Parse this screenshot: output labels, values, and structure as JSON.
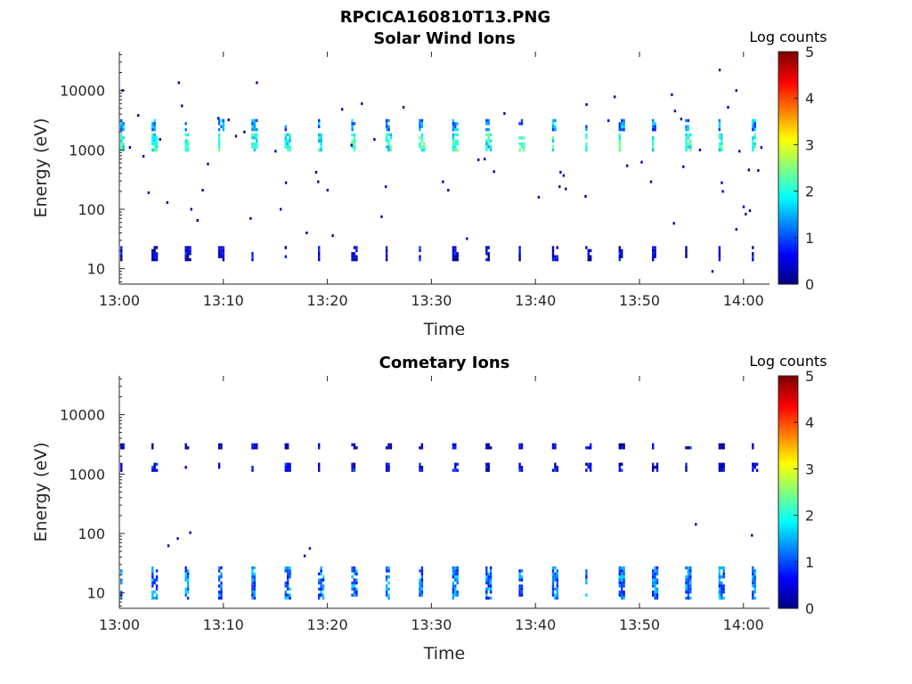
{
  "figure_title": "RPCICA160810T13.PNG",
  "chart_data": [
    {
      "type": "heatmap",
      "title": "Solar Wind Ions",
      "xlabel": "Time",
      "ylabel": "Energy (eV)",
      "x_ticks": [
        "13:00",
        "13:10",
        "13:20",
        "13:30",
        "13:40",
        "13:50",
        "14:00"
      ],
      "x_range_minutes": [
        0,
        62.5
      ],
      "y_scale": "log",
      "y_ticks": [
        10,
        100,
        1000,
        10000
      ],
      "y_tick_labels": [
        "10",
        "100",
        "1000",
        "10000"
      ],
      "y_range": [
        5.5,
        45000
      ],
      "colorbar_title": "Log counts",
      "colorbar_range": [
        0,
        5
      ],
      "colorbar_ticks": [
        "0",
        "1",
        "2",
        "3",
        "4",
        "5"
      ],
      "colormap": "jet",
      "grid": false,
      "bands": [
        {
          "energy_lo": 1050,
          "energy_hi": 1900,
          "log_counts": 2.0
        },
        {
          "energy_lo": 2300,
          "energy_hi": 3300,
          "log_counts": 1.3
        },
        {
          "energy_lo": 14,
          "energy_hi": 24,
          "log_counts": 0.4
        }
      ],
      "pulse_times_minutes": [
        0.3,
        3.3,
        6.5,
        9.7,
        12.9,
        16.1,
        19.3,
        22.5,
        25.8,
        29.0,
        32.2,
        35.4,
        38.6,
        41.8,
        45.0,
        48.2,
        51.4,
        54.6,
        57.8,
        61.0
      ],
      "sparse_points": [
        {
          "t": 0.3,
          "e": 10000
        },
        {
          "t": 1.0,
          "e": 1100
        },
        {
          "t": 1.8,
          "e": 3800
        },
        {
          "t": 2.3,
          "e": 780
        },
        {
          "t": 2.8,
          "e": 190
        },
        {
          "t": 3.9,
          "e": 1500
        },
        {
          "t": 4.6,
          "e": 130
        },
        {
          "t": 5.7,
          "e": 13500
        },
        {
          "t": 6.0,
          "e": 5500
        },
        {
          "t": 6.9,
          "e": 100
        },
        {
          "t": 7.5,
          "e": 65
        },
        {
          "t": 8.0,
          "e": 210
        },
        {
          "t": 8.5,
          "e": 580
        },
        {
          "t": 9.5,
          "e": 3400
        },
        {
          "t": 10.5,
          "e": 3200
        },
        {
          "t": 11.2,
          "e": 1700
        },
        {
          "t": 12.0,
          "e": 2000
        },
        {
          "t": 12.6,
          "e": 70
        },
        {
          "t": 13.2,
          "e": 13500
        },
        {
          "t": 15.0,
          "e": 950
        },
        {
          "t": 15.5,
          "e": 100
        },
        {
          "t": 16.0,
          "e": 280
        },
        {
          "t": 18.0,
          "e": 40
        },
        {
          "t": 18.9,
          "e": 420
        },
        {
          "t": 19.1,
          "e": 290
        },
        {
          "t": 20.0,
          "e": 210
        },
        {
          "t": 20.5,
          "e": 36
        },
        {
          "t": 21.4,
          "e": 4800
        },
        {
          "t": 22.3,
          "e": 1200
        },
        {
          "t": 23.3,
          "e": 6000
        },
        {
          "t": 24.5,
          "e": 1500
        },
        {
          "t": 25.2,
          "e": 75
        },
        {
          "t": 25.6,
          "e": 240
        },
        {
          "t": 27.3,
          "e": 5200
        },
        {
          "t": 31.1,
          "e": 290
        },
        {
          "t": 31.6,
          "e": 210
        },
        {
          "t": 33.4,
          "e": 32
        },
        {
          "t": 34.5,
          "e": 680
        },
        {
          "t": 35.1,
          "e": 700
        },
        {
          "t": 36.0,
          "e": 430
        },
        {
          "t": 37.0,
          "e": 4100
        },
        {
          "t": 40.3,
          "e": 160
        },
        {
          "t": 42.4,
          "e": 420
        },
        {
          "t": 42.7,
          "e": 370
        },
        {
          "t": 42.3,
          "e": 240
        },
        {
          "t": 42.9,
          "e": 220
        },
        {
          "t": 44.8,
          "e": 165
        },
        {
          "t": 44.9,
          "e": 5800
        },
        {
          "t": 47.6,
          "e": 7800
        },
        {
          "t": 48.8,
          "e": 540
        },
        {
          "t": 50.2,
          "e": 620
        },
        {
          "t": 51.1,
          "e": 290
        },
        {
          "t": 53.1,
          "e": 8500
        },
        {
          "t": 53.4,
          "e": 4500
        },
        {
          "t": 53.3,
          "e": 58
        },
        {
          "t": 54.2,
          "e": 520
        },
        {
          "t": 55.8,
          "e": 1000
        },
        {
          "t": 57.7,
          "e": 22000
        },
        {
          "t": 57.9,
          "e": 280
        },
        {
          "t": 58.0,
          "e": 200
        },
        {
          "t": 58.5,
          "e": 5200
        },
        {
          "t": 59.3,
          "e": 10000
        },
        {
          "t": 59.3,
          "e": 46
        },
        {
          "t": 59.6,
          "e": 950
        },
        {
          "t": 60.5,
          "e": 460
        },
        {
          "t": 60.2,
          "e": 83
        },
        {
          "t": 60.0,
          "e": 110
        },
        {
          "t": 61.4,
          "e": 450
        },
        {
          "t": 61.7,
          "e": 1100
        },
        {
          "t": 60.6,
          "e": 95
        },
        {
          "t": 54.0,
          "e": 3300
        },
        {
          "t": 57.0,
          "e": 9
        },
        {
          "t": 47.0,
          "e": 3100
        }
      ]
    },
    {
      "type": "heatmap",
      "title": "Cometary Ions",
      "xlabel": "Time",
      "ylabel": "Energy (eV)",
      "x_ticks": [
        "13:00",
        "13:10",
        "13:20",
        "13:30",
        "13:40",
        "13:50",
        "14:00"
      ],
      "x_range_minutes": [
        0,
        62.5
      ],
      "y_scale": "log",
      "y_ticks": [
        10,
        100,
        1000,
        10000
      ],
      "y_tick_labels": [
        "10",
        "100",
        "1000",
        "10000"
      ],
      "y_range": [
        5.5,
        45000
      ],
      "colorbar_title": "Log counts",
      "colorbar_range": [
        0,
        5
      ],
      "colorbar_ticks": [
        "0",
        "1",
        "2",
        "3",
        "4",
        "5"
      ],
      "colormap": "jet",
      "grid": false,
      "bands": [
        {
          "energy_lo": 2700,
          "energy_hi": 3300,
          "log_counts": 0.3
        },
        {
          "energy_lo": 1200,
          "energy_hi": 1550,
          "log_counts": 0.5
        },
        {
          "energy_lo": 8,
          "energy_hi": 28,
          "log_counts": 1.2
        }
      ],
      "pulse_times_minutes": [
        0.3,
        3.3,
        6.5,
        9.7,
        12.9,
        16.1,
        19.3,
        22.5,
        25.8,
        29.0,
        32.2,
        35.4,
        38.6,
        41.8,
        45.0,
        48.2,
        51.4,
        54.6,
        57.8,
        61.0
      ],
      "sparse_points": [
        {
          "t": 4.7,
          "e": 62
        },
        {
          "t": 5.6,
          "e": 82
        },
        {
          "t": 6.8,
          "e": 103
        },
        {
          "t": 17.8,
          "e": 42
        },
        {
          "t": 18.3,
          "e": 56
        },
        {
          "t": 55.4,
          "e": 142
        },
        {
          "t": 60.8,
          "e": 93
        }
      ]
    }
  ]
}
